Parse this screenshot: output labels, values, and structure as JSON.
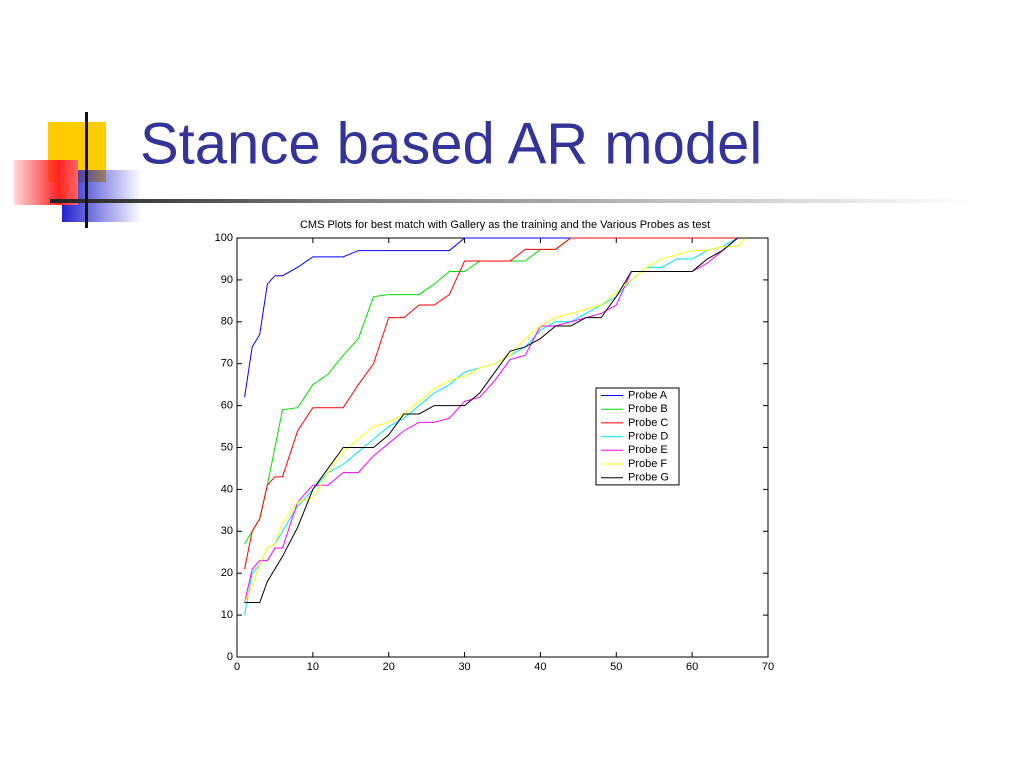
{
  "slide_title": "Stance based AR model",
  "chart_data": {
    "type": "line",
    "title": "CMS Plots for best match with Gallery as the training and the Various Probes as test",
    "x": [
      1,
      2,
      3,
      4,
      5,
      6,
      8,
      10,
      12,
      14,
      16,
      18,
      20,
      22,
      24,
      26,
      28,
      30,
      32,
      34,
      36,
      38,
      40,
      42,
      44,
      46,
      48,
      50,
      52,
      54,
      56,
      58,
      60,
      62,
      64,
      66,
      67
    ],
    "series": [
      {
        "name": "Probe A",
        "color": "#0000ff",
        "values": [
          62,
          74,
          77,
          89,
          91,
          91,
          93,
          95.5,
          95.5,
          95.5,
          97,
          97,
          97,
          97,
          97,
          97,
          97,
          100,
          100,
          100,
          100,
          100,
          100,
          100,
          100,
          100,
          100,
          100,
          100,
          100,
          100,
          100,
          100,
          100,
          100,
          100,
          100
        ]
      },
      {
        "name": "Probe B",
        "color": "#00dd00",
        "values": [
          27,
          30,
          33,
          41,
          50,
          59,
          59.5,
          65,
          67.5,
          72,
          76,
          86,
          86.5,
          86.5,
          86.5,
          89,
          92,
          92,
          94.5,
          94.5,
          94.5,
          94.5,
          97.3,
          97.3,
          100,
          100,
          100,
          100,
          100,
          100,
          100,
          100,
          100,
          100,
          100,
          100,
          100
        ]
      },
      {
        "name": "Probe C",
        "color": "#ff0000",
        "values": [
          21,
          30,
          33,
          41,
          43,
          43,
          54,
          59.5,
          59.5,
          59.5,
          65,
          70,
          81,
          81,
          84,
          84,
          86.5,
          94.5,
          94.5,
          94.5,
          94.5,
          97.3,
          97.3,
          97.3,
          100,
          100,
          100,
          100,
          100,
          100,
          100,
          100,
          100,
          100,
          100,
          100,
          100
        ]
      },
      {
        "name": "Probe D",
        "color": "#00e5ff",
        "values": [
          10,
          20,
          22,
          26,
          27,
          30,
          36,
          40,
          44,
          46,
          49,
          52,
          55,
          57,
          60,
          63,
          65,
          68,
          69,
          70,
          72,
          74,
          78,
          80,
          80,
          82,
          84,
          86,
          90,
          93,
          93,
          95,
          95,
          97,
          98,
          100,
          100
        ]
      },
      {
        "name": "Probe E",
        "color": "#ff00ff",
        "values": [
          13,
          21,
          23,
          23,
          26,
          26,
          37,
          41,
          41,
          44,
          44,
          48,
          51,
          54,
          56,
          56,
          57,
          61,
          62,
          66,
          71,
          72,
          79,
          79,
          80,
          81,
          82,
          84,
          92,
          92,
          92,
          92,
          92,
          94,
          97,
          100,
          100
        ]
      },
      {
        "name": "Probe F",
        "color": "#ffff00",
        "values": [
          13,
          17,
          22,
          26,
          27,
          32,
          37,
          38,
          44,
          49,
          52,
          55,
          56,
          58,
          61,
          64,
          66,
          67,
          69,
          70,
          72,
          76,
          79,
          81,
          82,
          83,
          84,
          87,
          90,
          93,
          95,
          96,
          97,
          97,
          98,
          98,
          100
        ]
      },
      {
        "name": "Probe G",
        "color": "#000000",
        "values": [
          13,
          13,
          13,
          18,
          21,
          24,
          31,
          40,
          45,
          50,
          50,
          50,
          53,
          58,
          58,
          60,
          60,
          60,
          63,
          68,
          73,
          74,
          76,
          79,
          79,
          81,
          81,
          86,
          92,
          92,
          92,
          92,
          92,
          95,
          97,
          100,
          100
        ]
      }
    ],
    "xlim": [
      0,
      70
    ],
    "xticks": [
      0,
      10,
      20,
      30,
      40,
      50,
      60,
      70
    ],
    "ylim": [
      0,
      100
    ],
    "yticks": [
      0,
      10,
      20,
      30,
      40,
      50,
      60,
      70,
      80,
      90,
      100
    ],
    "legend": "center right"
  }
}
